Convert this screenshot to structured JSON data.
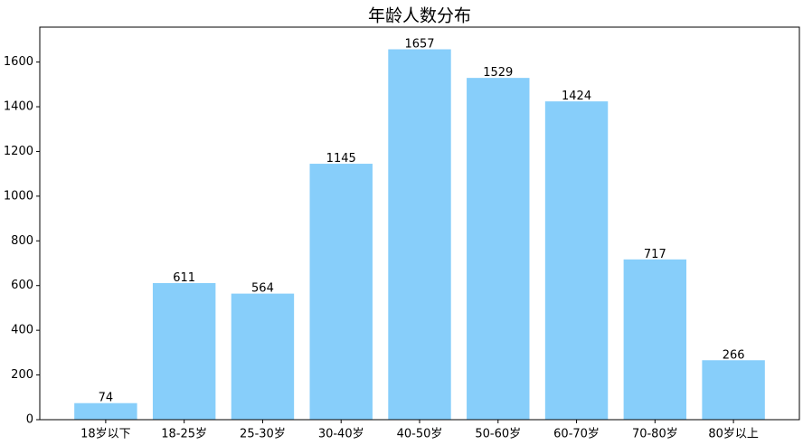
{
  "chart_data": {
    "type": "bar",
    "title": "年龄人数分布",
    "categories": [
      "18岁以下",
      "18-25岁",
      "25-30岁",
      "30-40岁",
      "40-50岁",
      "50-60岁",
      "60-70岁",
      "70-80岁",
      "80岁以上"
    ],
    "values": [
      74,
      611,
      564,
      1145,
      1657,
      1529,
      1424,
      717,
      266
    ],
    "color": "#87cefa",
    "ylim": [
      0,
      1740
    ],
    "yticks": [
      0,
      200,
      400,
      600,
      800,
      1000,
      1200,
      1400,
      1600
    ]
  }
}
